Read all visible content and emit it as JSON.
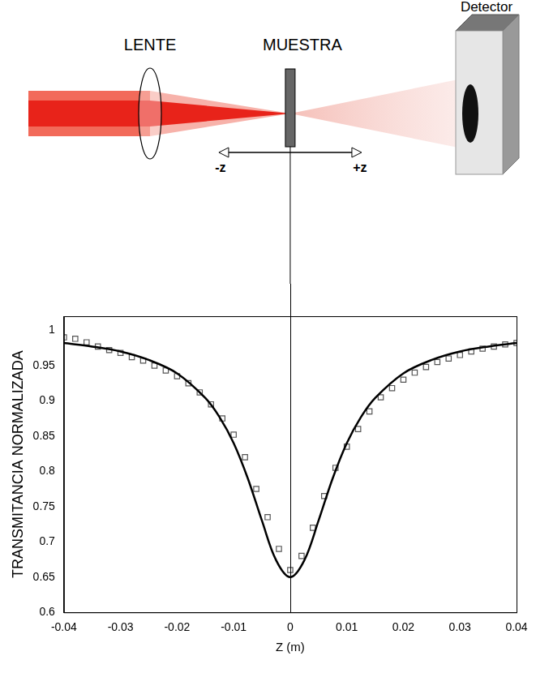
{
  "diagram": {
    "labels": {
      "lens": "LENTE",
      "sample": "MUESTRA",
      "detector": "Detector",
      "minus_z": "-z",
      "plus_z": "+z"
    }
  },
  "chart_data": {
    "type": "scatter",
    "x_label": "Z (m)",
    "y_label": "TRANSMITANCIA NORMALIZADA",
    "xlim": [
      -0.04,
      0.04
    ],
    "xticks": [
      -0.04,
      -0.03,
      -0.02,
      -0.01,
      0,
      0.01,
      0.02,
      0.03,
      0.04
    ],
    "ylim": [
      0.6,
      1.02
    ],
    "yticks": [
      0.6,
      0.65,
      0.7,
      0.75,
      0.8,
      0.85,
      0.9,
      0.95,
      1
    ],
    "grid": false,
    "series": [
      {
        "type": "scatter",
        "marker": "square",
        "color": "#555555",
        "x": [
          -0.04,
          -0.038,
          -0.036,
          -0.034,
          -0.032,
          -0.03,
          -0.028,
          -0.026,
          -0.024,
          -0.022,
          -0.02,
          -0.018,
          -0.016,
          -0.014,
          -0.012,
          -0.01,
          -0.008,
          -0.006,
          -0.004,
          -0.002,
          0,
          0.002,
          0.004,
          0.006,
          0.008,
          0.01,
          0.012,
          0.014,
          0.016,
          0.018,
          0.02,
          0.022,
          0.024,
          0.026,
          0.028,
          0.03,
          0.032,
          0.034,
          0.036,
          0.038,
          0.04
        ],
        "values": [
          0.99,
          0.988,
          0.983,
          0.977,
          0.972,
          0.968,
          0.962,
          0.957,
          0.95,
          0.943,
          0.935,
          0.925,
          0.912,
          0.895,
          0.875,
          0.852,
          0.82,
          0.775,
          0.735,
          0.69,
          0.66,
          0.68,
          0.72,
          0.765,
          0.805,
          0.835,
          0.86,
          0.885,
          0.905,
          0.918,
          0.93,
          0.94,
          0.948,
          0.955,
          0.96,
          0.965,
          0.97,
          0.974,
          0.977,
          0.98,
          0.982
        ]
      },
      {
        "type": "line",
        "line_style": "solid",
        "color": "#000000",
        "x": [
          -0.04,
          -0.035,
          -0.03,
          -0.025,
          -0.02,
          -0.015,
          -0.0125,
          -0.01,
          -0.0075,
          -0.005,
          -0.0025,
          0,
          0.0025,
          0.005,
          0.0075,
          0.01,
          0.0125,
          0.015,
          0.02,
          0.025,
          0.03,
          0.035,
          0.04
        ],
        "values": [
          0.982,
          0.977,
          0.97,
          0.958,
          0.939,
          0.904,
          0.877,
          0.84,
          0.79,
          0.73,
          0.674,
          0.65,
          0.674,
          0.73,
          0.79,
          0.84,
          0.877,
          0.904,
          0.939,
          0.958,
          0.97,
          0.977,
          0.982
        ]
      }
    ]
  }
}
